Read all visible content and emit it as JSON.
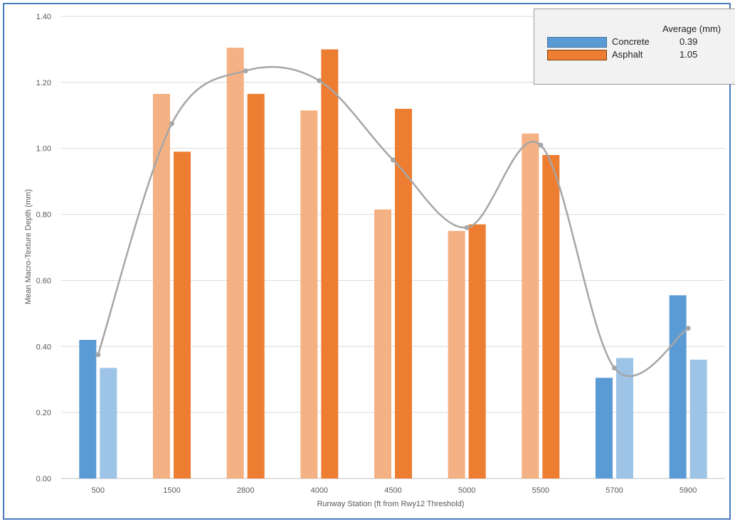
{
  "chart_data": {
    "type": "bar",
    "xlabel": "Runway Station (ft from Rwy12 Threshold)",
    "ylabel": "Mean Macro-Texture Depth (mm)",
    "ylim": [
      0,
      1.4
    ],
    "yticks": [
      "0.00",
      "0.20",
      "0.40",
      "0.60",
      "0.80",
      "1.00",
      "1.20",
      "1.40"
    ],
    "grid": true,
    "categories": [
      "500",
      "1500",
      "2800",
      "4000",
      "4500",
      "5000",
      "5500",
      "5700",
      "5900"
    ],
    "bar_pairs": [
      {
        "values": [
          0.42,
          0.335
        ],
        "colors": [
          "#5b9bd5",
          "#9dc3e6"
        ]
      },
      {
        "values": [
          1.165,
          0.99
        ],
        "colors": [
          "#f4b183",
          "#ed7d31"
        ]
      },
      {
        "values": [
          1.305,
          1.165
        ],
        "colors": [
          "#f4b183",
          "#ed7d31"
        ]
      },
      {
        "values": [
          1.115,
          1.3
        ],
        "colors": [
          "#f4b183",
          "#ed7d31"
        ]
      },
      {
        "values": [
          0.815,
          1.12
        ],
        "colors": [
          "#f4b183",
          "#ed7d31"
        ]
      },
      {
        "values": [
          0.75,
          0.77
        ],
        "colors": [
          "#f4b183",
          "#ed7d31"
        ]
      },
      {
        "values": [
          1.045,
          0.98
        ],
        "colors": [
          "#f4b183",
          "#ed7d31"
        ]
      },
      {
        "values": [
          0.305,
          0.365
        ],
        "colors": [
          "#5b9bd5",
          "#9dc3e6"
        ]
      },
      {
        "values": [
          0.555,
          0.36
        ],
        "colors": [
          "#5b9bd5",
          "#9dc3e6"
        ]
      }
    ],
    "trend_line": {
      "color": "#a6a6a6",
      "values": [
        0.375,
        1.075,
        1.235,
        1.205,
        0.965,
        0.76,
        1.01,
        0.335,
        0.455
      ]
    },
    "legend": {
      "position": "top-right",
      "header": "Average (mm)",
      "items": [
        {
          "name": "Concrete",
          "average": "0.39",
          "color": "#5b9bd5"
        },
        {
          "name": "Asphalt",
          "average": "1.05",
          "color": "#ed7d31"
        }
      ]
    }
  }
}
